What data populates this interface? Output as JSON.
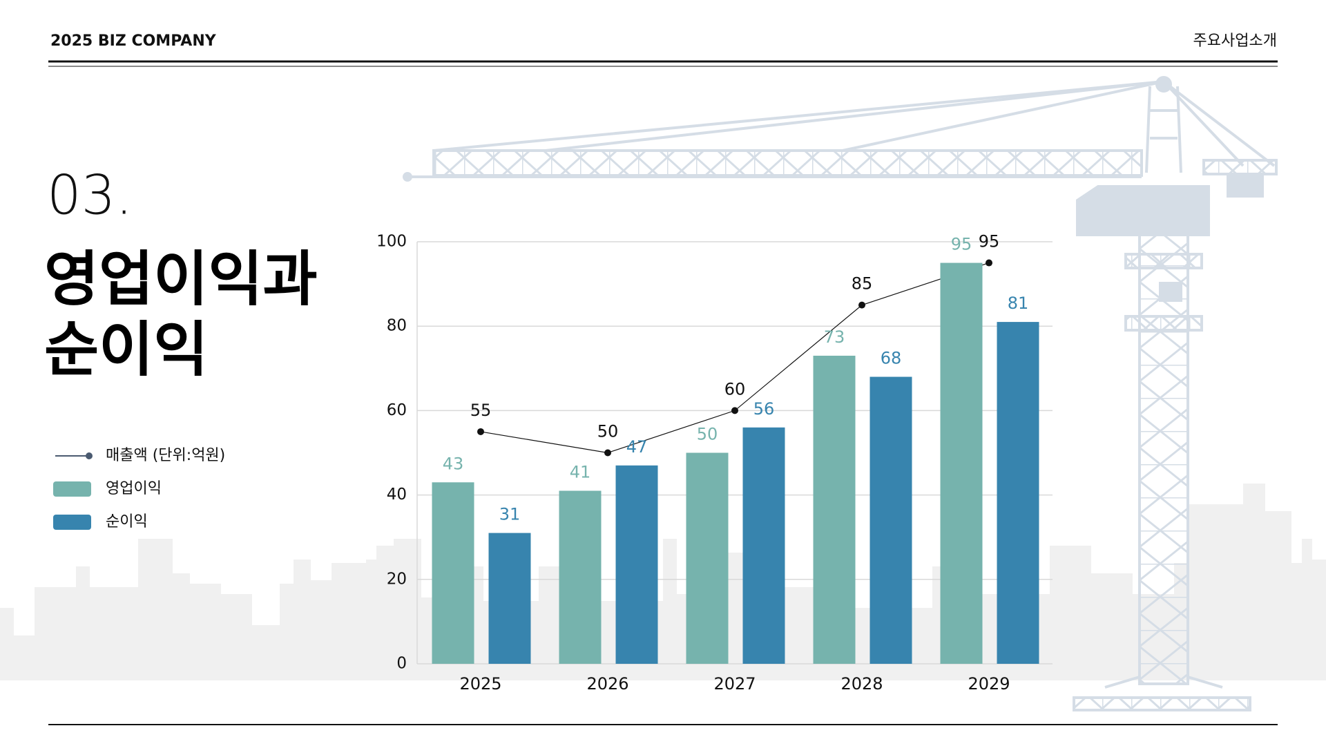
{
  "header": {
    "left": "2025 BIZ COMPANY",
    "right": "주요사업소개"
  },
  "section_number": "03.",
  "title_lines": [
    "영업이익과",
    "순이익"
  ],
  "chart_data": {
    "type": "bar",
    "categories": [
      "2025",
      "2026",
      "2027",
      "2028",
      "2029"
    ],
    "series": [
      {
        "name": "매출액 (단위:억원)",
        "type": "line",
        "color": "#111111",
        "values": [
          55,
          50,
          60,
          85,
          95
        ]
      },
      {
        "name": "영업이익",
        "color": "#76b3ad",
        "values": [
          43,
          41,
          50,
          73,
          95
        ]
      },
      {
        "name": "순이익",
        "color": "#3784ae",
        "values": [
          31,
          47,
          56,
          68,
          81
        ]
      }
    ],
    "ylim": [
      0,
      100
    ],
    "yticks": [
      0,
      20,
      40,
      60,
      80,
      100
    ],
    "grid": true
  }
}
